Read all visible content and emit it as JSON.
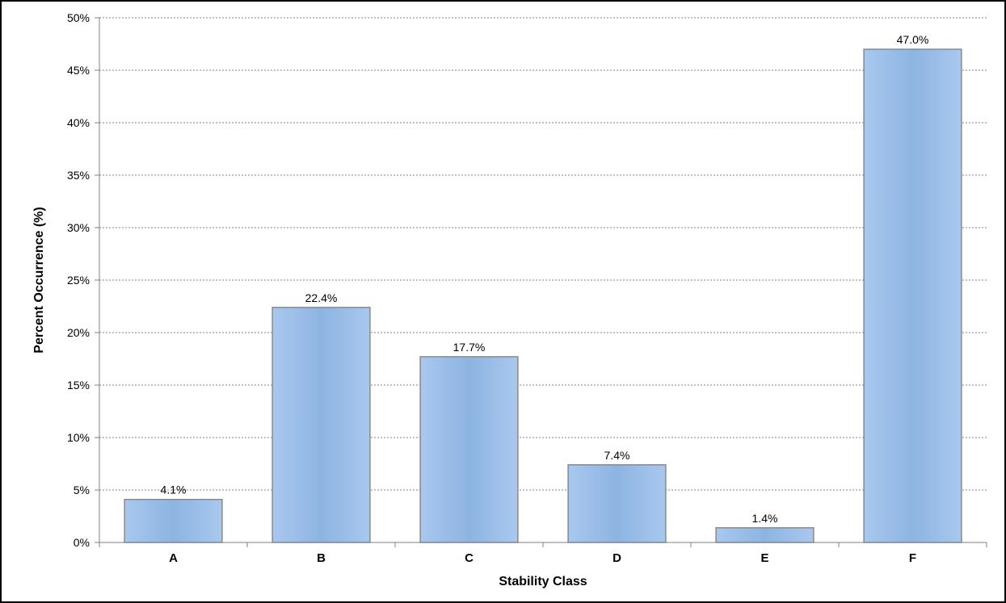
{
  "chart_data": {
    "type": "bar",
    "title": "",
    "xlabel": "Stability Class",
    "ylabel": "Percent Occurrence (%)",
    "categories": [
      "A",
      "B",
      "C",
      "D",
      "E",
      "F"
    ],
    "values": [
      4.1,
      22.4,
      17.7,
      7.4,
      1.4,
      47.0
    ],
    "data_labels": [
      "4.1%",
      "22.4%",
      "17.7%",
      "7.4%",
      "1.4%",
      "47.0%"
    ],
    "ylim": [
      0,
      50
    ],
    "yticks": [
      0,
      5,
      10,
      15,
      20,
      25,
      30,
      35,
      40,
      45,
      50
    ],
    "ytick_labels": [
      "0%",
      "5%",
      "10%",
      "15%",
      "20%",
      "25%",
      "30%",
      "35%",
      "40%",
      "45%",
      "50%"
    ],
    "grid": "horizontal dotted",
    "legend": "none",
    "bar_color": "#8db4e2",
    "bar_border_color": "#8a8a8a"
  }
}
